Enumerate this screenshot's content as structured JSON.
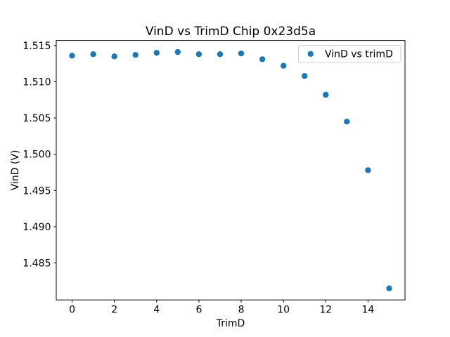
{
  "window": {
    "background": "#ffffff"
  },
  "chart_data": {
    "type": "scatter",
    "title": "VinD vs TrimD Chip 0x23d5a",
    "xlabel": "TrimD",
    "ylabel": "VinD (V)",
    "legend": {
      "label": "VinD vs trimD",
      "position": "upper right"
    },
    "series": [
      {
        "name": "VinD vs trimD",
        "x": [
          0,
          1,
          2,
          3,
          4,
          5,
          6,
          7,
          8,
          9,
          10,
          11,
          12,
          13,
          14,
          15
        ],
        "y": [
          1.5136,
          1.5138,
          1.5135,
          1.5137,
          1.514,
          1.5141,
          1.5138,
          1.5138,
          1.5139,
          1.5131,
          1.5122,
          1.5108,
          1.5082,
          1.5045,
          1.4978,
          1.4815
        ]
      }
    ],
    "xlim": [
      -0.75,
      15.75
    ],
    "ylim": [
      1.4799,
      1.5157
    ],
    "x_ticks": [
      0,
      2,
      4,
      6,
      8,
      10,
      12,
      14
    ],
    "x_tick_labels": [
      "0",
      "2",
      "4",
      "6",
      "8",
      "10",
      "12",
      "14"
    ],
    "y_ticks": [
      1.515,
      1.51,
      1.505,
      1.5,
      1.495,
      1.49,
      1.485
    ],
    "y_tick_labels": [
      "1.515",
      "1.510",
      "1.505",
      "1.500",
      "1.495",
      "1.490",
      "1.485"
    ],
    "grid": false,
    "marker_color": "#1f77b4",
    "marker_radius": 4.2,
    "spine_color": "#000000",
    "legend_border_color": "#cccccc",
    "legend_background": "rgba(255,255,255,0.85)"
  }
}
